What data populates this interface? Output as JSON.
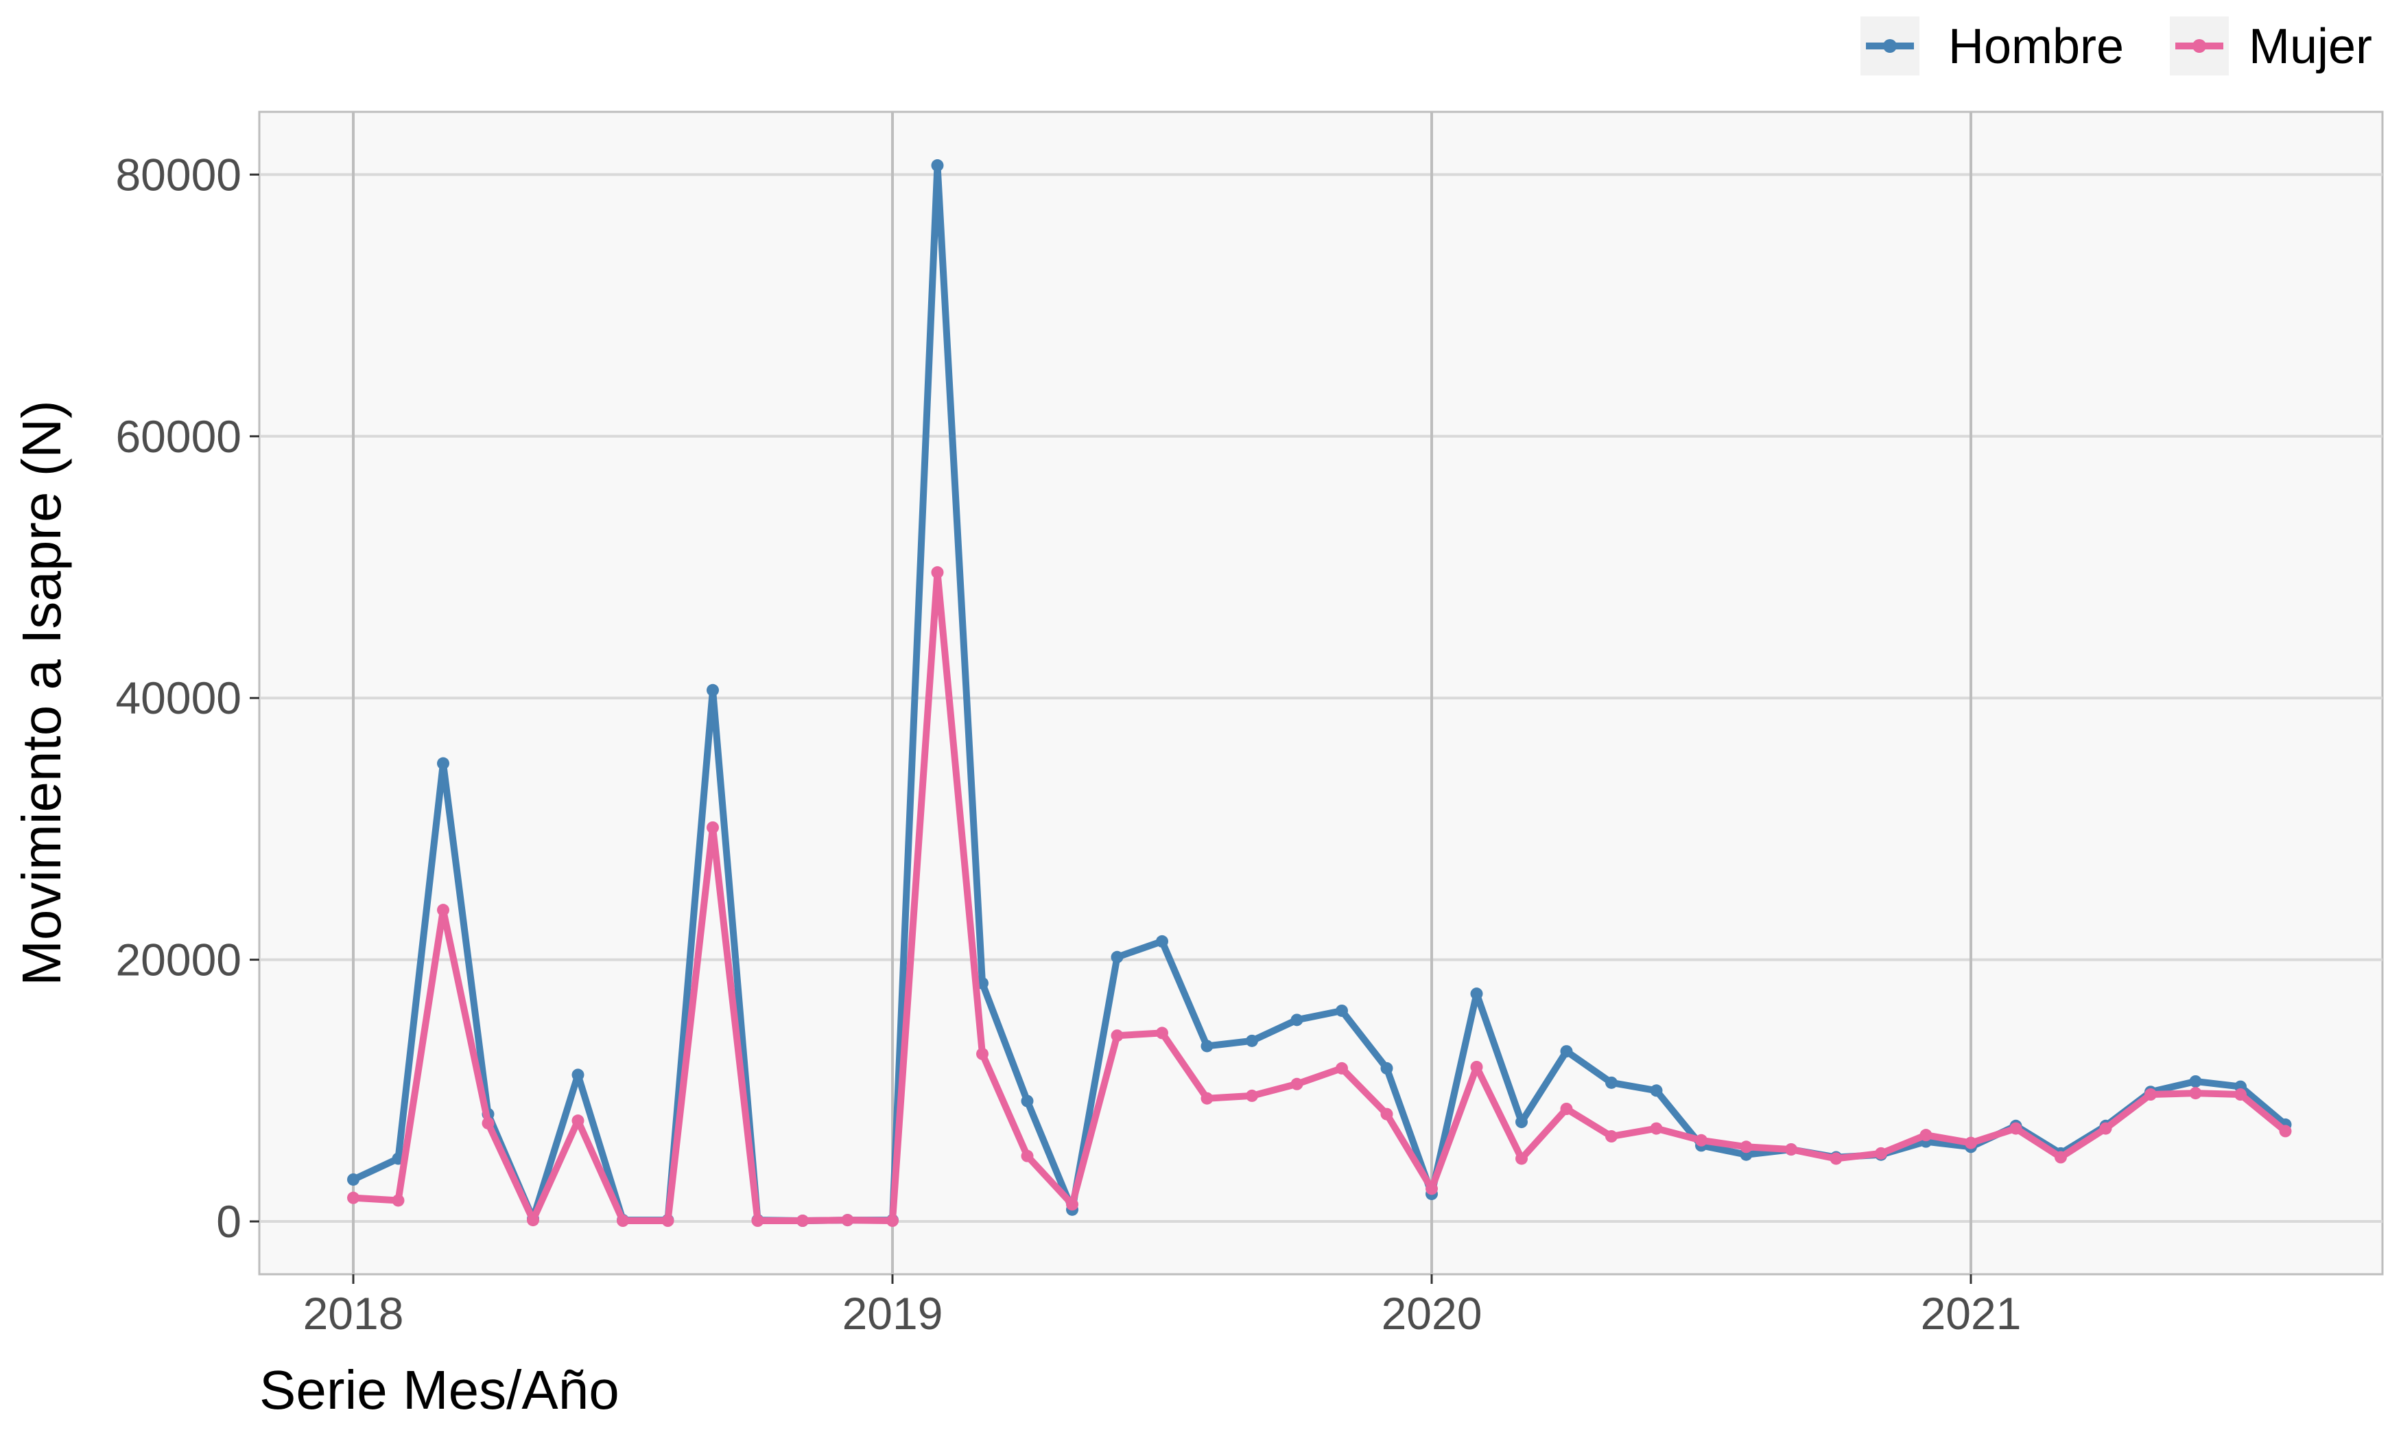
{
  "chart_data": {
    "type": "line",
    "xlabel": "Serie Mes/Año",
    "ylabel": "Movimiento a Isapre (N)",
    "ylim": [
      0,
      85000
    ],
    "yticks": [
      0,
      20000,
      40000,
      60000,
      80000
    ],
    "ytick_labels": [
      "0",
      "20000",
      "40000",
      "60000",
      "80000"
    ],
    "xticks": [
      "2018-01",
      "2019-01",
      "2020-01",
      "2021-01"
    ],
    "xtick_labels": [
      "2018",
      "2019",
      "2020",
      "2021"
    ],
    "x": [
      "2018-01",
      "2018-02",
      "2018-03",
      "2018-04",
      "2018-05",
      "2018-06",
      "2018-07",
      "2018-08",
      "2018-09",
      "2018-10",
      "2018-11",
      "2018-12",
      "2019-01",
      "2019-02",
      "2019-03",
      "2019-04",
      "2019-05",
      "2019-06",
      "2019-07",
      "2019-08",
      "2019-09",
      "2019-10",
      "2019-11",
      "2019-12",
      "2020-01",
      "2020-02",
      "2020-03",
      "2020-04",
      "2020-05",
      "2020-06",
      "2020-07",
      "2020-08",
      "2020-09",
      "2020-10",
      "2020-11",
      "2020-12",
      "2021-01",
      "2021-02",
      "2021-03",
      "2021-04",
      "2021-05",
      "2021-06",
      "2021-07",
      "2021-08"
    ],
    "series": [
      {
        "name": "Hombre",
        "color": "#4682b4",
        "values": [
          3200,
          4800,
          35000,
          8200,
          200,
          11200,
          100,
          100,
          40600,
          100,
          50,
          100,
          100,
          80700,
          18200,
          9200,
          900,
          20200,
          21400,
          13400,
          13800,
          15400,
          16100,
          11700,
          2100,
          17400,
          7600,
          13000,
          10600,
          10000,
          5800,
          5100,
          5500,
          4900,
          5100,
          6100,
          5700,
          7300,
          5200,
          7300,
          9900,
          10700,
          10300,
          7400
        ]
      },
      {
        "name": "Mujer",
        "color": "#e8659e",
        "values": [
          1800,
          1600,
          23800,
          7500,
          100,
          7700,
          50,
          50,
          30100,
          50,
          50,
          100,
          50,
          49600,
          12800,
          5000,
          1300,
          14200,
          14400,
          9400,
          9600,
          10500,
          11700,
          8200,
          2500,
          11800,
          4800,
          8600,
          6500,
          7100,
          6200,
          5700,
          5500,
          4800,
          5200,
          6600,
          6000,
          7100,
          4900,
          7100,
          9700,
          9800,
          9700,
          6900
        ]
      }
    ],
    "grid": true,
    "legend_position": "top-right"
  }
}
